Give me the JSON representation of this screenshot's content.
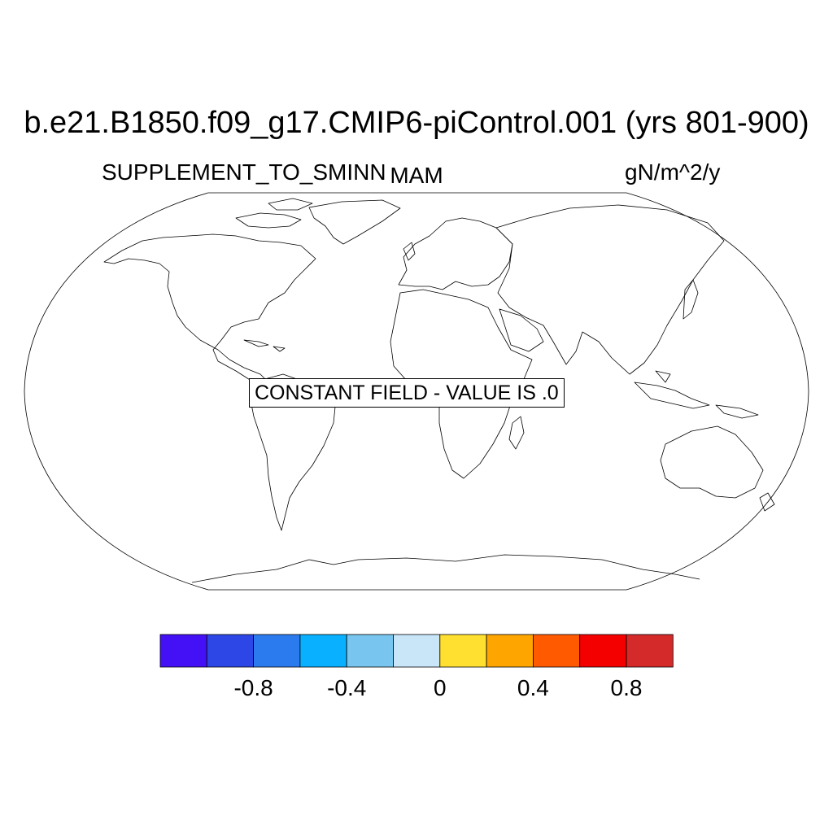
{
  "header": {
    "title": "b.e21.B1850.f09_g17.CMIP6-piControl.001 (yrs 801-900)",
    "variable": "SUPPLEMENT_TO_SMINN",
    "season": "MAM",
    "units": "gN/m^2/y"
  },
  "map": {
    "projection": "robinson",
    "notice": "CONSTANT FIELD - VALUE IS .0"
  },
  "colorbar": {
    "colors": [
      "#4410f5",
      "#2d46e6",
      "#2b7bef",
      "#08b0ff",
      "#78c6ef",
      "#c8e6f8",
      "#ffe030",
      "#ffa500",
      "#ff5a00",
      "#f50000",
      "#d42a2a"
    ],
    "boundaries": [
      -1.0,
      -0.8,
      -0.6,
      -0.4,
      -0.2,
      0,
      0.2,
      0.4,
      0.6,
      0.8,
      1.0
    ],
    "tick_labels": [
      {
        "value": -0.8,
        "label": "-0.8"
      },
      {
        "value": -0.4,
        "label": "-0.4"
      },
      {
        "value": 0,
        "label": "0"
      },
      {
        "value": 0.4,
        "label": "0.4"
      },
      {
        "value": 0.8,
        "label": "0.8"
      }
    ]
  }
}
